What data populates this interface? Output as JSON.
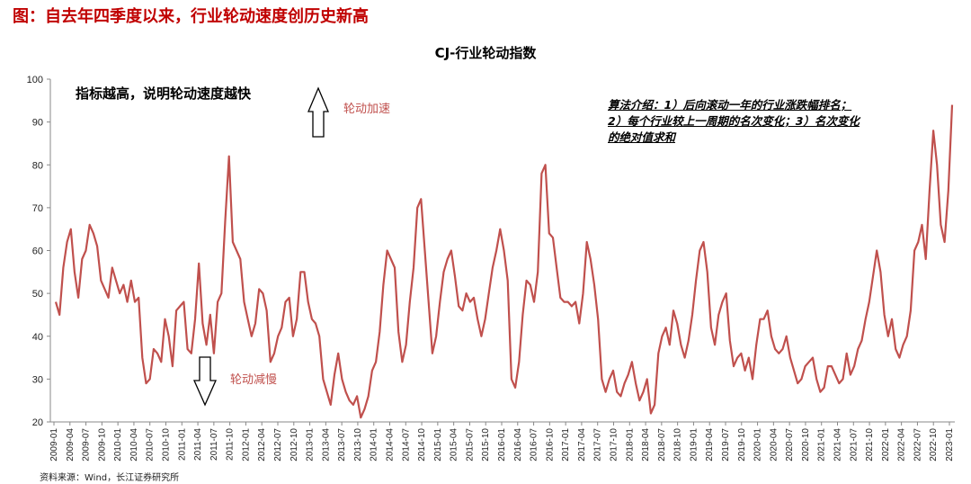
{
  "header": "图：自去年四季度以来，行业轮动速度创历史新高",
  "annotations": {
    "high_note": "指标越高，说明轮动速度越快",
    "up_label": "轮动加速",
    "down_label": "轮动减慢",
    "algorithm": "算法介绍：1）后向滚动一年的行业涨跌幅排名；2）每个行业较上一周期的名次变化；3）名次变化的绝对值求和"
  },
  "source": "资料来源：Wind，长江证券研究所",
  "colors": {
    "line": "#c0504d",
    "header": "#c00000"
  },
  "chart_data": {
    "type": "line",
    "title": "CJ-行业轮动指数",
    "xlabel": "",
    "ylabel": "",
    "ylim": [
      20,
      100
    ],
    "yticks": [
      20,
      30,
      40,
      50,
      60,
      70,
      80,
      90,
      100
    ],
    "xticks": [
      "2009-01",
      "2009-04",
      "2009-07",
      "2009-10",
      "2010-01",
      "2010-04",
      "2010-07",
      "2010-10",
      "2011-01",
      "2011-04",
      "2011-07",
      "2011-10",
      "2012-01",
      "2012-04",
      "2012-07",
      "2012-10",
      "2013-01",
      "2013-04",
      "2013-07",
      "2013-10",
      "2014-01",
      "2014-04",
      "2014-07",
      "2014-10",
      "2015-01",
      "2015-04",
      "2015-07",
      "2015-10",
      "2016-01",
      "2016-04",
      "2016-07",
      "2016-10",
      "2017-01",
      "2017-04",
      "2017-07",
      "2017-10",
      "2018-01",
      "2018-04",
      "2018-07",
      "2018-10",
      "2019-01",
      "2019-04",
      "2019-07",
      "2019-10",
      "2020-01",
      "2020-04",
      "2020-07",
      "2020-10",
      "2021-01",
      "2021-04",
      "2021-07",
      "2021-10",
      "2022-01",
      "2022-04",
      "2022-07",
      "2022-10",
      "2023-01"
    ],
    "series": [
      {
        "name": "CJ-行业轮动指数",
        "x_start": 2009.0,
        "x_end": 2023.2,
        "values": [
          48,
          45,
          56,
          62,
          65,
          55,
          49,
          58,
          60,
          66,
          64,
          61,
          53,
          51,
          49,
          56,
          53,
          50,
          52,
          48,
          53,
          48,
          49,
          35,
          29,
          30,
          37,
          36,
          34,
          44,
          40,
          33,
          46,
          47,
          48,
          37,
          36,
          44,
          57,
          43,
          38,
          45,
          36,
          48,
          50,
          67,
          82,
          62,
          60,
          58,
          48,
          44,
          40,
          43,
          51,
          50,
          46,
          34,
          36,
          40,
          42,
          48,
          49,
          40,
          44,
          55,
          55,
          48,
          44,
          43,
          40,
          30,
          27,
          24,
          31,
          36,
          30,
          27,
          25,
          24,
          26,
          21,
          23,
          26,
          32,
          34,
          41,
          52,
          60,
          58,
          56,
          41,
          34,
          38,
          48,
          56,
          70,
          72,
          60,
          48,
          36,
          40,
          48,
          55,
          58,
          60,
          54,
          47,
          46,
          50,
          48,
          49,
          44,
          40,
          44,
          50,
          56,
          60,
          65,
          60,
          53,
          30,
          28,
          34,
          45,
          53,
          52,
          48,
          55,
          78,
          80,
          64,
          63,
          56,
          49,
          48,
          48,
          47,
          48,
          43,
          50,
          62,
          58,
          52,
          44,
          30,
          27,
          30,
          32,
          27,
          26,
          29,
          31,
          34,
          29,
          25,
          27,
          30,
          22,
          24,
          36,
          40,
          42,
          38,
          46,
          43,
          38,
          35,
          39,
          45,
          53,
          60,
          62,
          55,
          42,
          38,
          45,
          48,
          50,
          39,
          33,
          35,
          36,
          32,
          35,
          30,
          38,
          44,
          44,
          46,
          40,
          37,
          36,
          37,
          40,
          35,
          32,
          29,
          30,
          33,
          34,
          35,
          30,
          27,
          28,
          33,
          33,
          31,
          29,
          30,
          36,
          31,
          33,
          37,
          39,
          44,
          48,
          54,
          60,
          55,
          45,
          40,
          44,
          37,
          35,
          38,
          40,
          46,
          60,
          62,
          66,
          58,
          74,
          88,
          80,
          66,
          62,
          74,
          94
        ]
      }
    ]
  }
}
